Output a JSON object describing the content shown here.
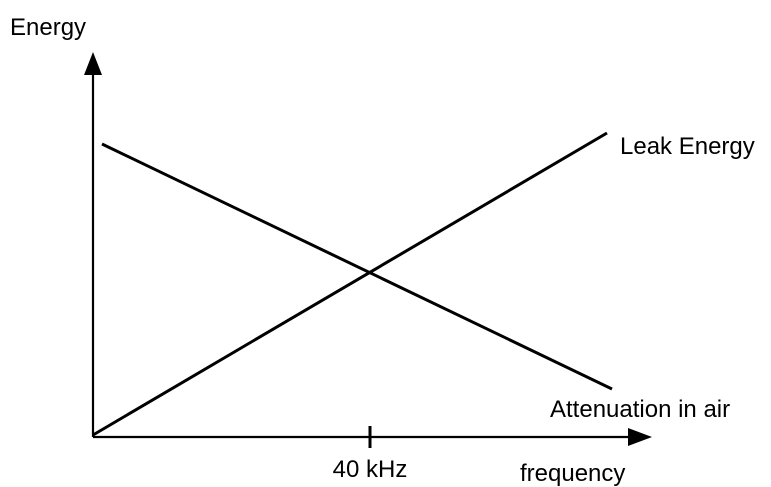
{
  "diagram": {
    "y_axis_label": "Energy",
    "x_axis_label": "frequency",
    "tick_label": "40 kHz",
    "curves": {
      "leak": {
        "label": "Leak Energy"
      },
      "attenuation": {
        "label": "Attenuation in air"
      }
    },
    "colors": {
      "ink": "#000000",
      "background": "#ffffff"
    }
  }
}
